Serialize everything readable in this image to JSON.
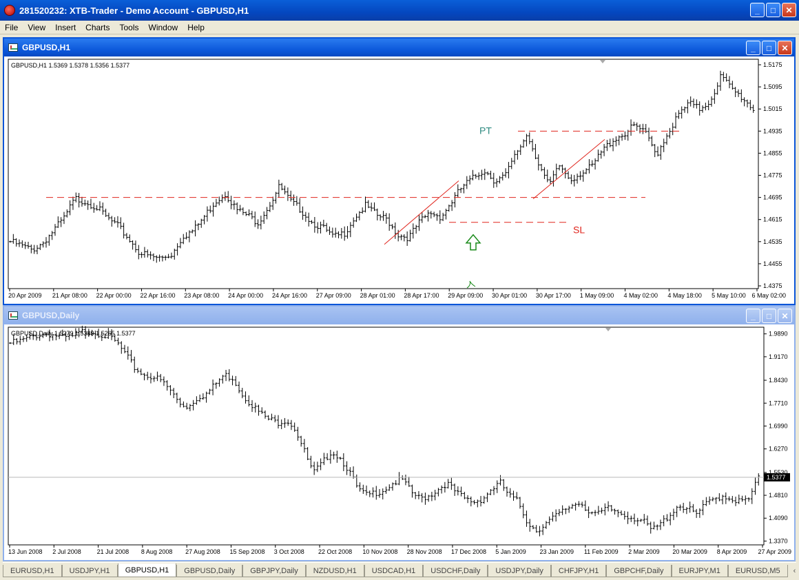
{
  "app": {
    "title": "281520232: XTB-Trader - Demo Account - GBPUSD,H1",
    "buttons": {
      "min": "_",
      "max": "□",
      "close": "✕"
    }
  },
  "menu": [
    "File",
    "View",
    "Insert",
    "Charts",
    "Tools",
    "Window",
    "Help"
  ],
  "window1": {
    "title": "GBPUSD,H1",
    "info": "GBPUSD,H1  1.5369 1.5378 1.5356 1.5377",
    "annotations": {
      "pt": "PT",
      "sl": "SL"
    },
    "colors": {
      "level": "#e0241c",
      "arrow": "#1a8a1a",
      "label_pt": "#2e8a80"
    }
  },
  "window2": {
    "title": "GBPUSD,Daily",
    "info": "GBPUSD,Daily  1.5279 1.5389 1.5265 1.5377",
    "price_marker": "1.5377"
  },
  "chart_data": [
    {
      "type": "ohlc",
      "symbol": "GBPUSD",
      "timeframe": "H1",
      "title": "GBPUSD,H1",
      "y_ticks": [
        "1.5175",
        "1.5095",
        "1.5015",
        "1.4935",
        "1.4855",
        "1.4775",
        "1.4695",
        "1.4615",
        "1.4535",
        "1.4455",
        "1.4375"
      ],
      "ylim": [
        1.4365,
        1.5195
      ],
      "x_ticks": [
        "20 Apr 2009",
        "21 Apr 08:00",
        "22 Apr 00:00",
        "22 Apr 16:00",
        "23 Apr 08:00",
        "24 Apr 00:00",
        "24 Apr 16:00",
        "27 Apr 09:00",
        "28 Apr 01:00",
        "28 Apr 17:00",
        "29 Apr 09:00",
        "30 Apr 01:00",
        "30 Apr 17:00",
        "1 May 09:00",
        "4 May 02:00",
        "4 May 18:00",
        "5 May 10:00",
        "6 May 02:00"
      ],
      "closes": [
        1.4535,
        1.452,
        1.4505,
        1.453,
        1.4575,
        1.462,
        1.469,
        1.468,
        1.466,
        1.462,
        1.459,
        1.4545,
        1.4495,
        1.448,
        1.4475,
        1.449,
        1.4555,
        1.4575,
        1.4625,
        1.468,
        1.471,
        1.465,
        1.463,
        1.4605,
        1.4665,
        1.4735,
        1.468,
        1.465,
        1.4605,
        1.4585,
        1.455,
        1.4565,
        1.4625,
        1.4665,
        1.463,
        1.4615,
        1.456,
        1.455,
        1.4605,
        1.464,
        1.4625,
        1.468,
        1.4735,
        1.4765,
        1.4795,
        1.4755,
        1.4775,
        1.4855,
        1.4925,
        1.4825,
        1.4735,
        1.481,
        1.476,
        1.4785,
        1.4805,
        1.4865,
        1.4905,
        1.4925,
        1.4955,
        1.4925,
        1.485,
        1.4925,
        1.499,
        1.5035,
        1.5015,
        1.5045,
        1.5135,
        1.5085,
        1.5055,
        1.5015
      ],
      "levels": [
        {
          "name": "upper",
          "y": 1.4935,
          "style": "dashed",
          "color": "#e0241c"
        },
        {
          "name": "resistance",
          "y": 1.4695,
          "style": "dashed",
          "color": "#e0241c"
        },
        {
          "name": "stop",
          "y": 1.4605,
          "style": "dashed",
          "color": "#e0241c"
        }
      ]
    },
    {
      "type": "ohlc",
      "symbol": "GBPUSD",
      "timeframe": "Daily",
      "title": "GBPUSD,Daily",
      "y_ticks": [
        "1.9890",
        "1.9170",
        "1.8430",
        "1.7710",
        "1.6990",
        "1.6270",
        "1.5530",
        "1.4810",
        "1.4090",
        "1.3370"
      ],
      "ylim": [
        1.325,
        2.01
      ],
      "x_ticks": [
        "13 Jun 2008",
        "2 Jul 2008",
        "21 Jul 2008",
        "8 Aug 2008",
        "27 Aug 2008",
        "15 Sep 2008",
        "3 Oct 2008",
        "22 Oct 2008",
        "10 Nov 2008",
        "28 Nov 2008",
        "17 Dec 2008",
        "5 Jan 2009",
        "23 Jan 2009",
        "11 Feb 2009",
        "2 Mar 2009",
        "20 Mar 2009",
        "8 Apr 2009",
        "27 Apr 2009"
      ],
      "closes": [
        1.96,
        1.965,
        1.975,
        1.985,
        1.99,
        1.985,
        1.975,
        1.98,
        1.995,
        1.998,
        1.99,
        1.98,
        1.96,
        1.92,
        1.88,
        1.86,
        1.855,
        1.84,
        1.81,
        1.77,
        1.76,
        1.79,
        1.8,
        1.83,
        1.86,
        1.85,
        1.8,
        1.77,
        1.74,
        1.72,
        1.71,
        1.72,
        1.69,
        1.62,
        1.55,
        1.58,
        1.62,
        1.6,
        1.56,
        1.5,
        1.48,
        1.49,
        1.5,
        1.52,
        1.53,
        1.49,
        1.47,
        1.48,
        1.5,
        1.52,
        1.49,
        1.47,
        1.46,
        1.47,
        1.5,
        1.52,
        1.48,
        1.46,
        1.4,
        1.37,
        1.39,
        1.41,
        1.43,
        1.45,
        1.46,
        1.43,
        1.42,
        1.44,
        1.43,
        1.42,
        1.41,
        1.4,
        1.37,
        1.39,
        1.42,
        1.45,
        1.44,
        1.42,
        1.45,
        1.47,
        1.48,
        1.47,
        1.46,
        1.47,
        1.5377
      ],
      "current_price": 1.5377
    }
  ],
  "tabs": [
    {
      "label": "EURUSD,H1",
      "active": false
    },
    {
      "label": "USDJPY,H1",
      "active": false
    },
    {
      "label": "GBPUSD,H1",
      "active": true
    },
    {
      "label": "GBPUSD,Daily",
      "active": false
    },
    {
      "label": "GBPJPY,Daily",
      "active": false
    },
    {
      "label": "NZDUSD,H1",
      "active": false
    },
    {
      "label": "USDCAD,H1",
      "active": false
    },
    {
      "label": "USDCHF,Daily",
      "active": false
    },
    {
      "label": "USDJPY,Daily",
      "active": false
    },
    {
      "label": "CHFJPY,H1",
      "active": false
    },
    {
      "label": "GBPCHF,Daily",
      "active": false
    },
    {
      "label": "EURJPY,M1",
      "active": false
    },
    {
      "label": "EURUSD,M5",
      "active": false
    }
  ],
  "tab_nav": {
    "prev": "‹",
    "next": "›"
  }
}
